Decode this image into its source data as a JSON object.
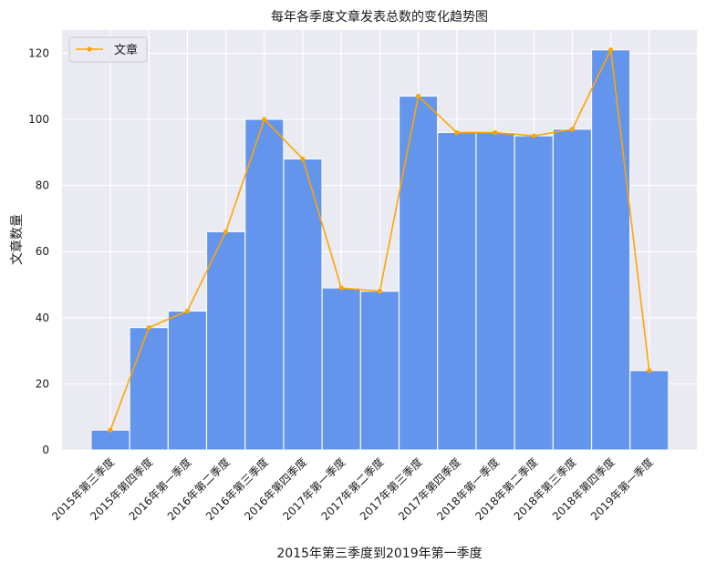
{
  "chart_data": {
    "type": "bar",
    "title": "每年各季度文章发表总数的变化趋势图",
    "xlabel": "2015年第三季度到2019年第一季度",
    "ylabel": "文章数量",
    "categories": [
      "2015年第三季度",
      "2015年第四季度",
      "2016年第一季度",
      "2016年第二季度",
      "2016年第三季度",
      "2016年第四季度",
      "2017年第一季度",
      "2017年第二季度",
      "2017年第三季度",
      "2017年第四季度",
      "2018年第一季度",
      "2018年第二季度",
      "2018年第三季度",
      "2018年第四季度",
      "2019年第一季度"
    ],
    "values": [
      6,
      37,
      42,
      66,
      100,
      88,
      49,
      48,
      107,
      96,
      96,
      95,
      97,
      121,
      24
    ],
    "series": [
      {
        "name": "文章",
        "type": "line",
        "values": [
          6,
          37,
          42,
          66,
          100,
          88,
          49,
          48,
          107,
          96,
          96,
          95,
          97,
          121,
          24
        ]
      }
    ],
    "ylim": [
      0,
      127
    ],
    "yticks": [
      0,
      20,
      40,
      60,
      80,
      100,
      120
    ],
    "grid": true,
    "legend_position": "top-left",
    "colors": {
      "bar": "#6495ED",
      "line": "#FFA500",
      "plot_background": "#EAEAF2",
      "grid": "#FFFFFF"
    }
  }
}
